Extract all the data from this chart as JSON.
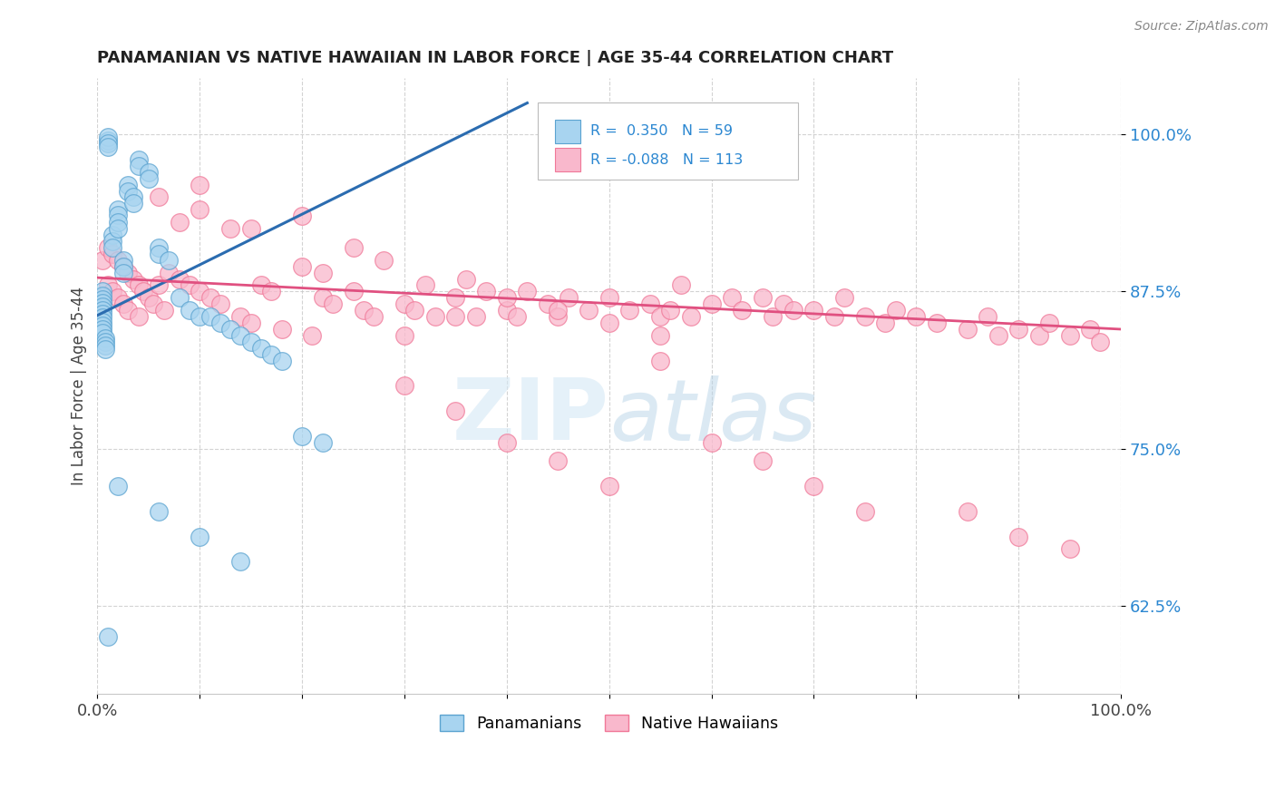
{
  "title": "PANAMANIAN VS NATIVE HAWAIIAN IN LABOR FORCE | AGE 35-44 CORRELATION CHART",
  "source_text": "Source: ZipAtlas.com",
  "ylabel": "In Labor Force | Age 35-44",
  "ytick_labels": [
    "62.5%",
    "75.0%",
    "87.5%",
    "100.0%"
  ],
  "ytick_values": [
    0.625,
    0.75,
    0.875,
    1.0
  ],
  "xlim": [
    0.0,
    1.0
  ],
  "ylim": [
    0.555,
    1.045
  ],
  "panamanian_color": "#a8d4f0",
  "native_hawaiian_color": "#f9b8cc",
  "panamanian_edge": "#5ba3d0",
  "native_hawaiian_edge": "#f07898",
  "trendline1_color": "#2b6cb0",
  "trendline2_color": "#e05080",
  "watermark_zip": "ZIP",
  "watermark_atlas": "atlas",
  "pan_x": [
    0.005,
    0.005,
    0.005,
    0.005,
    0.005,
    0.005,
    0.005,
    0.005,
    0.005,
    0.005,
    0.005,
    0.005,
    0.008,
    0.008,
    0.008,
    0.008,
    0.01,
    0.01,
    0.01,
    0.01,
    0.015,
    0.015,
    0.015,
    0.02,
    0.02,
    0.02,
    0.02,
    0.025,
    0.025,
    0.025,
    0.03,
    0.03,
    0.035,
    0.035,
    0.04,
    0.04,
    0.05,
    0.05,
    0.06,
    0.06,
    0.07,
    0.08,
    0.09,
    0.1,
    0.11,
    0.12,
    0.13,
    0.14,
    0.15,
    0.16,
    0.17,
    0.18,
    0.2,
    0.22,
    0.02,
    0.06,
    0.1,
    0.14,
    0.01
  ],
  "pan_y": [
    0.875,
    0.872,
    0.869,
    0.866,
    0.863,
    0.86,
    0.857,
    0.854,
    0.851,
    0.848,
    0.845,
    0.842,
    0.838,
    0.835,
    0.832,
    0.829,
    0.995,
    0.998,
    0.993,
    0.99,
    0.92,
    0.915,
    0.91,
    0.94,
    0.936,
    0.93,
    0.925,
    0.9,
    0.895,
    0.89,
    0.96,
    0.955,
    0.95,
    0.945,
    0.98,
    0.975,
    0.97,
    0.965,
    0.91,
    0.905,
    0.9,
    0.87,
    0.86,
    0.855,
    0.855,
    0.85,
    0.845,
    0.84,
    0.835,
    0.83,
    0.825,
    0.82,
    0.76,
    0.755,
    0.72,
    0.7,
    0.68,
    0.66,
    0.6
  ],
  "haw_x": [
    0.005,
    0.005,
    0.01,
    0.01,
    0.015,
    0.015,
    0.02,
    0.02,
    0.025,
    0.025,
    0.03,
    0.03,
    0.035,
    0.04,
    0.04,
    0.045,
    0.05,
    0.055,
    0.06,
    0.065,
    0.07,
    0.08,
    0.09,
    0.1,
    0.1,
    0.11,
    0.12,
    0.13,
    0.14,
    0.15,
    0.16,
    0.17,
    0.18,
    0.2,
    0.21,
    0.22,
    0.23,
    0.25,
    0.26,
    0.27,
    0.28,
    0.3,
    0.31,
    0.32,
    0.33,
    0.35,
    0.36,
    0.37,
    0.38,
    0.4,
    0.41,
    0.42,
    0.44,
    0.45,
    0.46,
    0.48,
    0.5,
    0.52,
    0.54,
    0.55,
    0.56,
    0.57,
    0.58,
    0.6,
    0.62,
    0.63,
    0.65,
    0.66,
    0.67,
    0.68,
    0.7,
    0.72,
    0.73,
    0.75,
    0.77,
    0.78,
    0.8,
    0.82,
    0.85,
    0.87,
    0.88,
    0.9,
    0.92,
    0.93,
    0.95,
    0.97,
    0.98,
    0.4,
    0.45,
    0.5,
    0.3,
    0.35,
    0.55,
    0.6,
    0.2,
    0.25,
    0.1,
    0.15,
    0.06,
    0.08,
    0.85,
    0.9,
    0.7,
    0.75,
    0.65,
    0.95,
    0.5,
    0.55,
    0.45,
    0.4,
    0.3,
    0.35,
    0.22
  ],
  "haw_y": [
    0.9,
    0.87,
    0.91,
    0.88,
    0.905,
    0.875,
    0.9,
    0.87,
    0.895,
    0.865,
    0.89,
    0.86,
    0.885,
    0.88,
    0.855,
    0.875,
    0.87,
    0.865,
    0.88,
    0.86,
    0.89,
    0.885,
    0.88,
    0.96,
    0.875,
    0.87,
    0.865,
    0.925,
    0.855,
    0.85,
    0.88,
    0.875,
    0.845,
    0.895,
    0.84,
    0.87,
    0.865,
    0.875,
    0.86,
    0.855,
    0.9,
    0.865,
    0.86,
    0.88,
    0.855,
    0.87,
    0.885,
    0.855,
    0.875,
    0.86,
    0.855,
    0.875,
    0.865,
    0.855,
    0.87,
    0.86,
    0.87,
    0.86,
    0.865,
    0.855,
    0.86,
    0.88,
    0.855,
    0.865,
    0.87,
    0.86,
    0.87,
    0.855,
    0.865,
    0.86,
    0.86,
    0.855,
    0.87,
    0.855,
    0.85,
    0.86,
    0.855,
    0.85,
    0.845,
    0.855,
    0.84,
    0.845,
    0.84,
    0.85,
    0.84,
    0.845,
    0.835,
    0.755,
    0.74,
    0.72,
    0.8,
    0.78,
    0.82,
    0.755,
    0.935,
    0.91,
    0.94,
    0.925,
    0.95,
    0.93,
    0.7,
    0.68,
    0.72,
    0.7,
    0.74,
    0.67,
    0.85,
    0.84,
    0.86,
    0.87,
    0.84,
    0.855,
    0.89
  ]
}
